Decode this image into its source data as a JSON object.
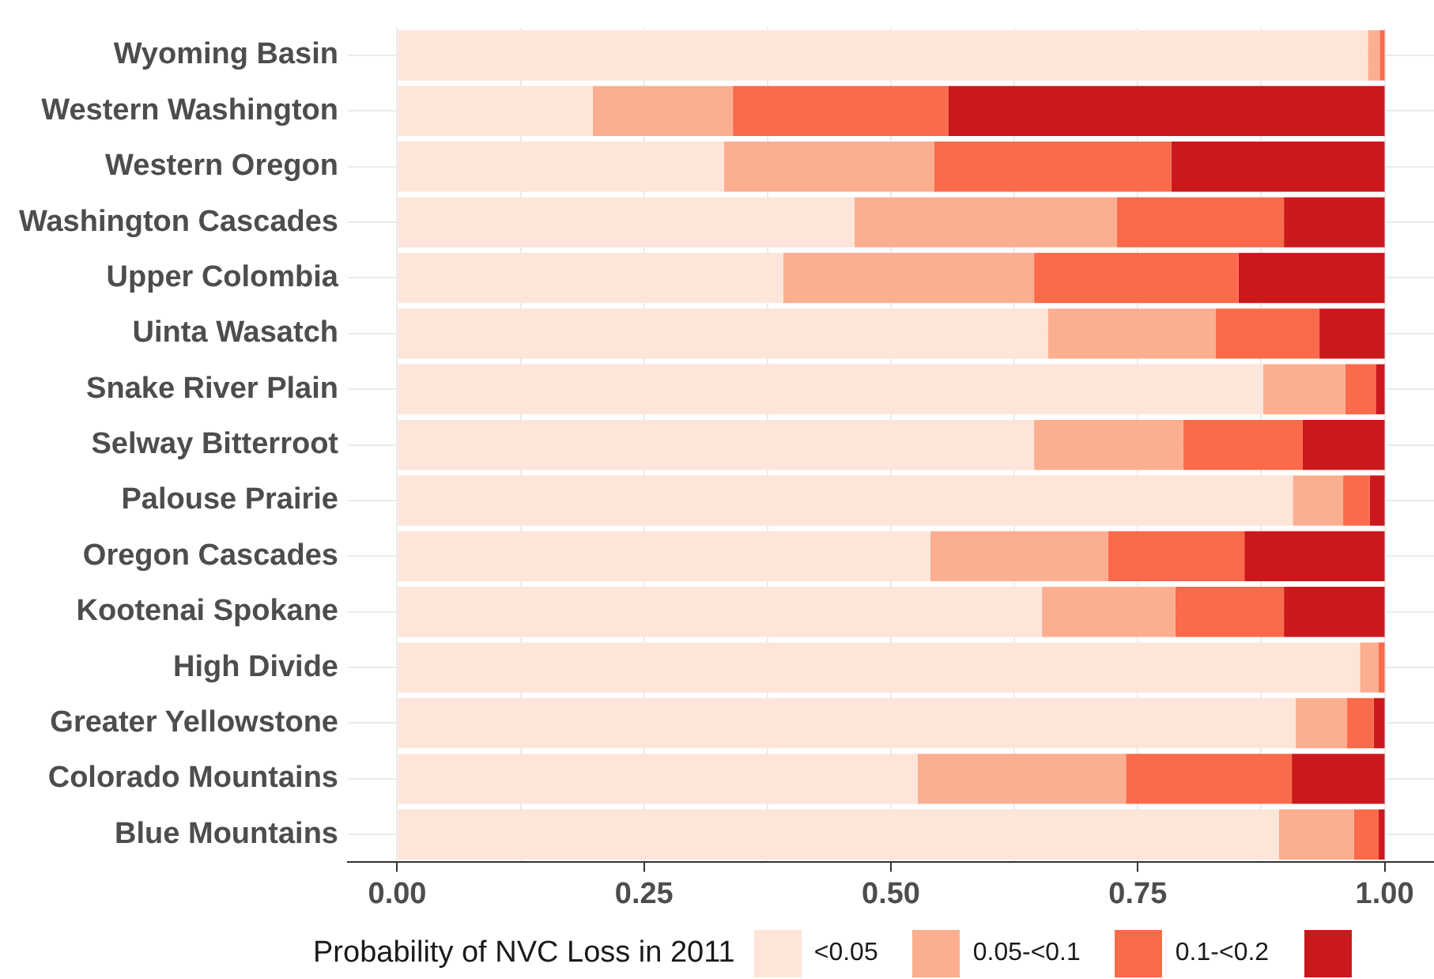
{
  "chart_data": {
    "type": "bar",
    "orientation": "horizontal",
    "stacked": true,
    "legend_title": "Probability of NVC Loss in 2011",
    "legend": "bottom",
    "categories": [
      "Wyoming Basin",
      "Western Washington",
      "Western Oregon",
      "Washington Cascades",
      "Upper Colombia",
      "Uinta Wasatch",
      "Snake River Plain",
      "Selway Bitterroot",
      "Palouse Prairie",
      "Oregon Cascades",
      "Kootenai Spokane",
      "High Divide",
      "Greater Yellowstone",
      "Colorado Mountains",
      "Blue Mountains"
    ],
    "series": [
      {
        "name": "<0.05",
        "color": "#fee5d9",
        "values": [
          0.983,
          0.198,
          0.331,
          0.463,
          0.391,
          0.659,
          0.877,
          0.645,
          0.907,
          0.54,
          0.653,
          0.975,
          0.91,
          0.527,
          0.893
        ]
      },
      {
        "name": "0.05-<0.1",
        "color": "#fcae91",
        "values": [
          0.012,
          0.142,
          0.213,
          0.266,
          0.254,
          0.17,
          0.083,
          0.151,
          0.051,
          0.18,
          0.135,
          0.019,
          0.052,
          0.211,
          0.076
        ]
      },
      {
        "name": "0.1-<0.2",
        "color": "#fb6a4a",
        "values": [
          0.005,
          0.218,
          0.24,
          0.169,
          0.207,
          0.105,
          0.031,
          0.121,
          0.027,
          0.138,
          0.11,
          0.006,
          0.027,
          0.168,
          0.025
        ]
      },
      {
        "color": "#cb181d",
        "values": [
          0,
          0.442,
          0.216,
          0.102,
          0.148,
          0.066,
          0.009,
          0.083,
          0.015,
          0.142,
          0.102,
          0,
          0.011,
          0.094,
          0.006
        ]
      }
    ],
    "xlim": [
      -0.05,
      1.05
    ],
    "xticks": [
      {
        "value": 0,
        "label": "0.00"
      },
      {
        "value": 0.125,
        "label": null
      },
      {
        "value": 0.25,
        "label": "0.25"
      },
      {
        "value": 0.375,
        "label": null
      },
      {
        "value": 0.5,
        "label": "0.50"
      },
      {
        "value": 0.625,
        "label": null
      },
      {
        "value": 0.75,
        "label": "0.75"
      },
      {
        "value": 0.875,
        "label": null
      },
      {
        "value": 1,
        "label": "1.00"
      }
    ],
    "grid": true
  }
}
